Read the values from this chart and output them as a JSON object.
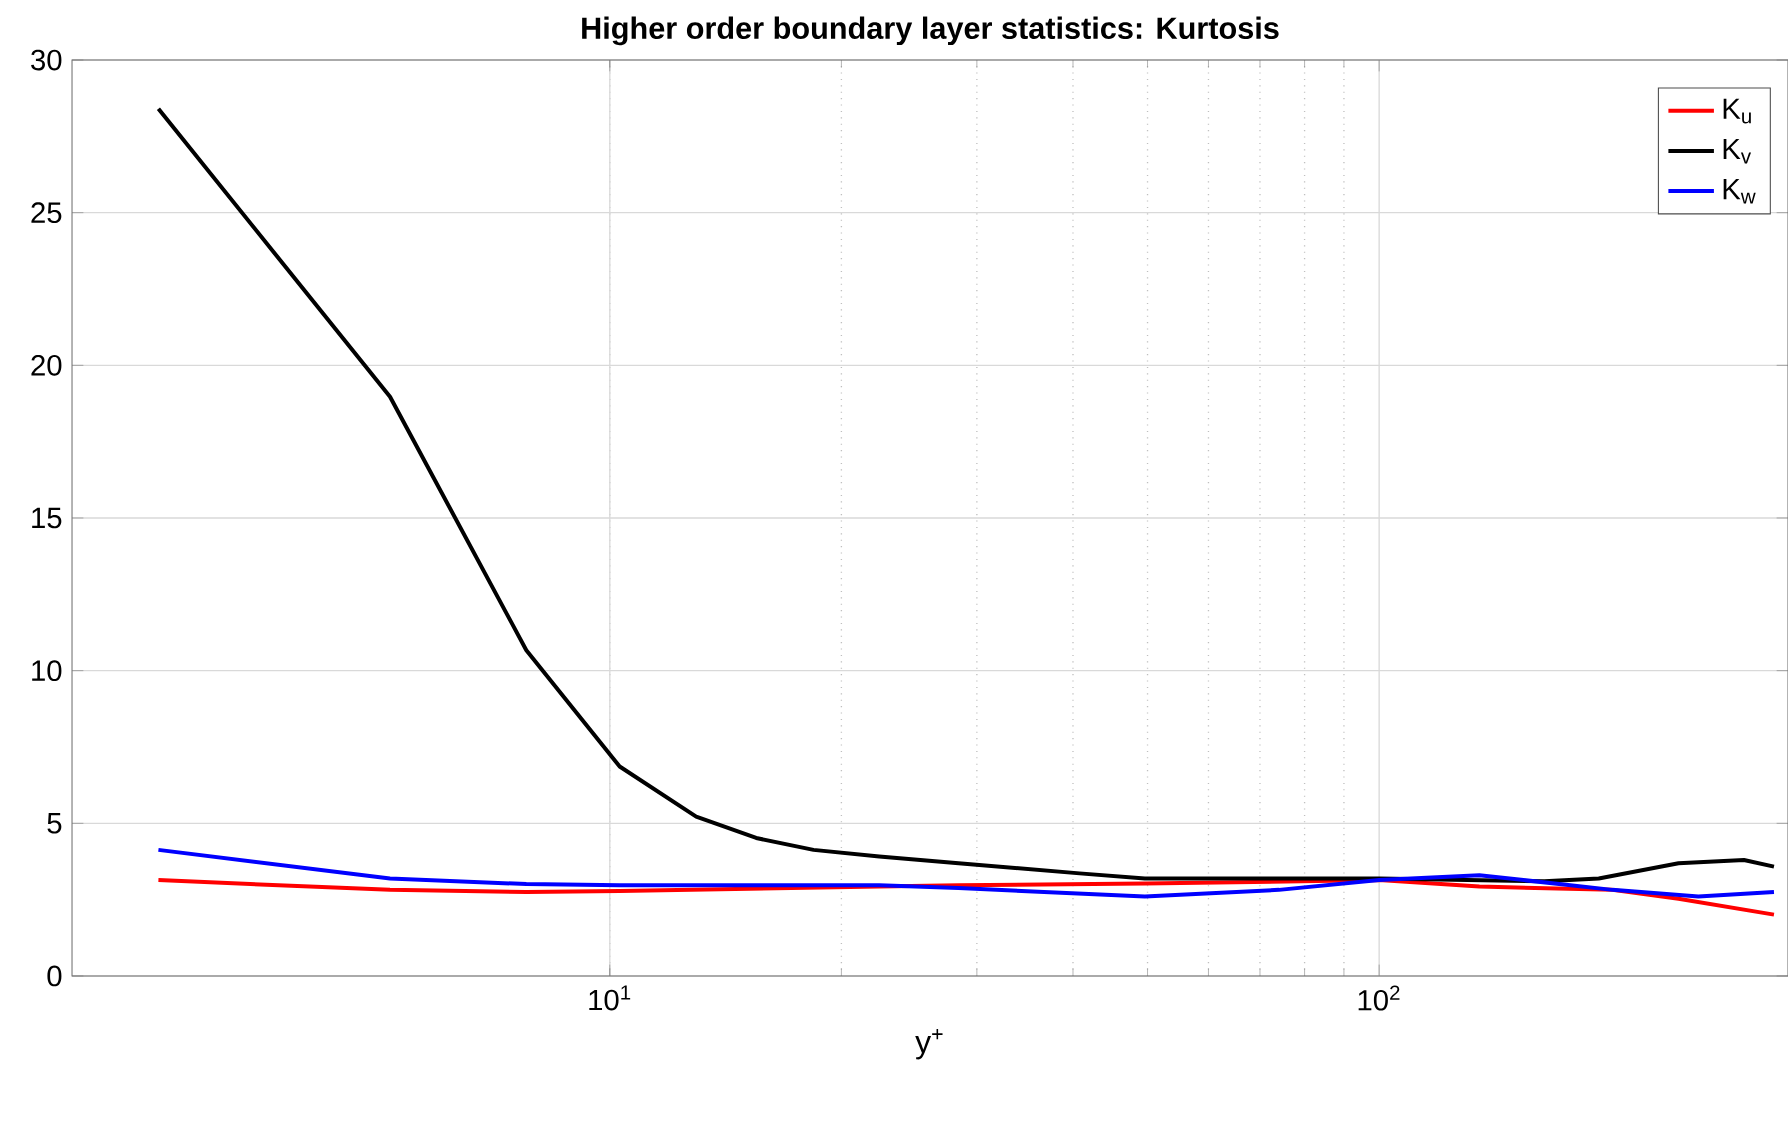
{
  "chart_data": {
    "type": "line",
    "title": "Higher order boundary layer statistics: Kurtosis",
    "xlabel": "y$^{+}$",
    "log": "x",
    "xlim": [
      2,
      340
    ],
    "ylim": [
      0,
      30
    ],
    "xticks": [
      {
        "value": 10,
        "label": "10$^{1}$"
      },
      {
        "value": 100,
        "label": "10$^{2}$"
      }
    ],
    "yticks": [
      0,
      5,
      10,
      15,
      20,
      25,
      30
    ],
    "grid": true,
    "legend": "top right",
    "series": [
      {
        "name": "K$_{u}$",
        "color": "#ff0000",
        "x": [
          2.59,
          5.18,
          7.79,
          10.3,
          22.4,
          28.4,
          49.6,
          100,
          135,
          201,
          245,
          326
        ],
        "values": [
          3.14,
          2.82,
          2.75,
          2.78,
          2.93,
          2.97,
          3.03,
          3.14,
          2.93,
          2.82,
          2.53,
          2.01
        ]
      },
      {
        "name": "K$_{v}$",
        "color": "#000000",
        "x": [
          2.59,
          5.18,
          7.79,
          10.3,
          12.95,
          15.5,
          18.4,
          22.4,
          28.4,
          40.8,
          49.6,
          100,
          164,
          193,
          245,
          298,
          326
        ],
        "values": [
          28.4,
          18.97,
          10.67,
          6.86,
          5.22,
          4.52,
          4.13,
          3.91,
          3.69,
          3.36,
          3.19,
          3.19,
          3.1,
          3.19,
          3.69,
          3.8,
          3.58
        ]
      },
      {
        "name": "K$_{w}$",
        "color": "#0000ff",
        "x": [
          2.59,
          5.18,
          7.79,
          10.3,
          22.4,
          28.4,
          49.6,
          74.1,
          100,
          135,
          201,
          260,
          326
        ],
        "values": [
          4.13,
          3.19,
          3.01,
          2.97,
          2.97,
          2.88,
          2.6,
          2.82,
          3.14,
          3.3,
          2.82,
          2.6,
          2.75
        ]
      }
    ]
  }
}
